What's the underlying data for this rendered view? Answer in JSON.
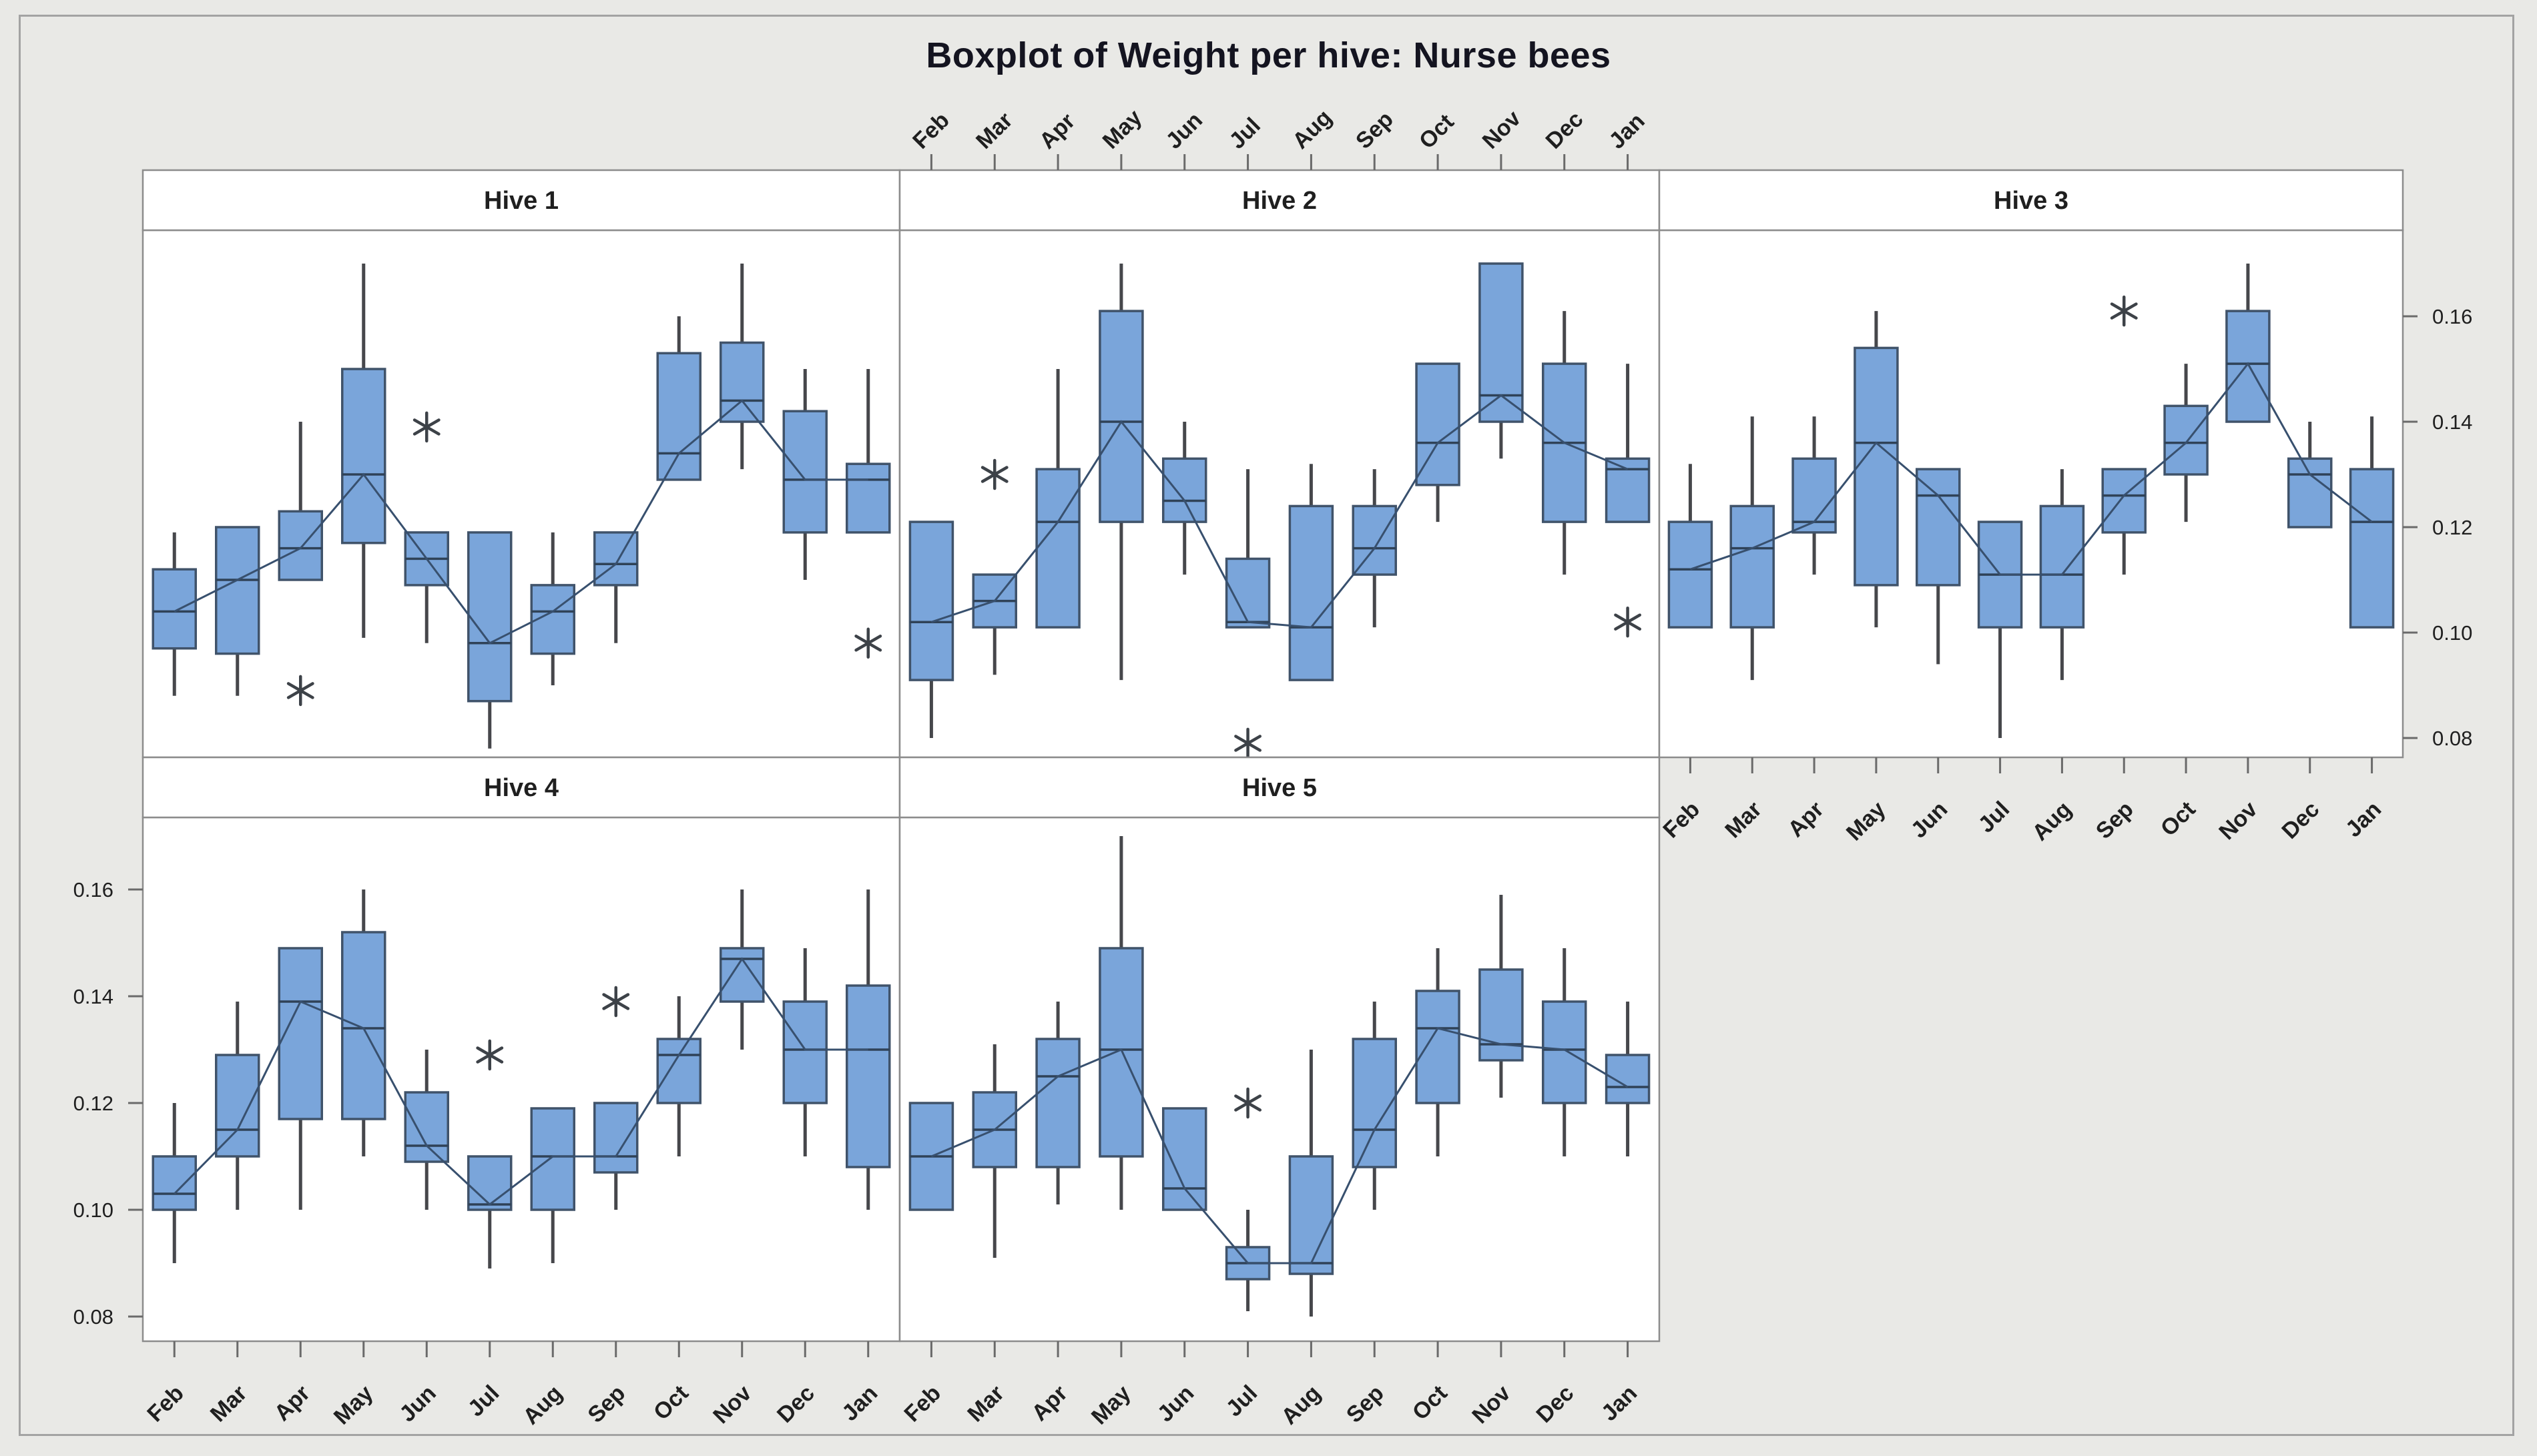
{
  "title": "Boxplot of Weight per hive: Nurse bees",
  "months": [
    "Feb",
    "Mar",
    "Apr",
    "May",
    "Jun",
    "Jul",
    "Aug",
    "Sep",
    "Oct",
    "Nov",
    "Dec",
    "Jan"
  ],
  "y_ticks": [
    "0.16",
    "0.14",
    "0.12",
    "0.10",
    "0.08"
  ],
  "y_tick_values": [
    0.16,
    0.14,
    0.12,
    0.1,
    0.08
  ],
  "colors": {
    "background": "#e9e9e6",
    "panel_bg": "#ffffff",
    "panel_border": "#8c8c8c",
    "box_fill": "#7aa5da",
    "box_stroke": "#40536a",
    "median": "#2f4257",
    "whisker": "#46474b",
    "connect_line": "#38506e",
    "outlier": "#3d4248",
    "axis_text": "#1f1f1f",
    "tick": "#6a6a6a",
    "frame": "#a3a3a3"
  },
  "chart_data": {
    "type": "boxplot",
    "title": "Boxplot of Weight per hive: Nurse bees",
    "categories": [
      "Feb",
      "Mar",
      "Apr",
      "May",
      "Jun",
      "Jul",
      "Aug",
      "Sep",
      "Oct",
      "Nov",
      "Dec",
      "Jan"
    ],
    "ylim": [
      0.075,
      0.178
    ],
    "y_tick_values": [
      0.16,
      0.14,
      0.12,
      0.1,
      0.08
    ],
    "grid": "off",
    "layout_hint": {
      "grid_rows": 2,
      "grid_cols": 3,
      "top_months_over": "Hive 2",
      "bottom_months_under": [
        "Hive 3",
        "Hive 4",
        "Hive 5"
      ],
      "y_labels_right_of": "Hive 3",
      "y_labels_left_of": "Hive 4",
      "median_connect_line": true,
      "outlier_symbol": "asterisk"
    },
    "panels": [
      {
        "label": "Hive 1",
        "boxes": [
          {
            "month": "Feb",
            "whislo": 0.088,
            "q1": 0.097,
            "med": 0.104,
            "q3": 0.112,
            "whishi": 0.119,
            "outliers": []
          },
          {
            "month": "Mar",
            "whislo": 0.088,
            "q1": 0.096,
            "med": 0.11,
            "q3": 0.12,
            "whishi": 0.12,
            "outliers": []
          },
          {
            "month": "Apr",
            "whislo": 0.11,
            "q1": 0.11,
            "med": 0.116,
            "q3": 0.123,
            "whishi": 0.14,
            "outliers": [
              0.089
            ]
          },
          {
            "month": "May",
            "whislo": 0.099,
            "q1": 0.117,
            "med": 0.13,
            "q3": 0.15,
            "whishi": 0.17,
            "outliers": []
          },
          {
            "month": "Jun",
            "whislo": 0.098,
            "q1": 0.109,
            "med": 0.114,
            "q3": 0.119,
            "whishi": 0.119,
            "outliers": [
              0.139
            ]
          },
          {
            "month": "Jul",
            "whislo": 0.078,
            "q1": 0.087,
            "med": 0.098,
            "q3": 0.119,
            "whishi": 0.119,
            "outliers": []
          },
          {
            "month": "Aug",
            "whislo": 0.09,
            "q1": 0.096,
            "med": 0.104,
            "q3": 0.109,
            "whishi": 0.119,
            "outliers": []
          },
          {
            "month": "Sep",
            "whislo": 0.098,
            "q1": 0.109,
            "med": 0.113,
            "q3": 0.119,
            "whishi": 0.119,
            "outliers": []
          },
          {
            "month": "Oct",
            "whislo": 0.129,
            "q1": 0.129,
            "med": 0.134,
            "q3": 0.153,
            "whishi": 0.16,
            "outliers": []
          },
          {
            "month": "Nov",
            "whislo": 0.131,
            "q1": 0.14,
            "med": 0.144,
            "q3": 0.155,
            "whishi": 0.17,
            "outliers": []
          },
          {
            "month": "Dec",
            "whislo": 0.11,
            "q1": 0.119,
            "med": 0.129,
            "q3": 0.142,
            "whishi": 0.15,
            "outliers": []
          },
          {
            "month": "Jan",
            "whislo": 0.119,
            "q1": 0.119,
            "med": 0.129,
            "q3": 0.132,
            "whishi": 0.15,
            "outliers": [
              0.098
            ]
          }
        ]
      },
      {
        "label": "Hive 2",
        "boxes": [
          {
            "month": "Feb",
            "whislo": 0.08,
            "q1": 0.091,
            "med": 0.102,
            "q3": 0.121,
            "whishi": 0.121,
            "outliers": []
          },
          {
            "month": "Mar",
            "whislo": 0.092,
            "q1": 0.101,
            "med": 0.106,
            "q3": 0.111,
            "whishi": 0.111,
            "outliers": [
              0.13
            ]
          },
          {
            "month": "Apr",
            "whislo": 0.101,
            "q1": 0.101,
            "med": 0.121,
            "q3": 0.131,
            "whishi": 0.15,
            "outliers": []
          },
          {
            "month": "May",
            "whislo": 0.091,
            "q1": 0.121,
            "med": 0.14,
            "q3": 0.161,
            "whishi": 0.17,
            "outliers": []
          },
          {
            "month": "Jun",
            "whislo": 0.111,
            "q1": 0.121,
            "med": 0.125,
            "q3": 0.133,
            "whishi": 0.14,
            "outliers": []
          },
          {
            "month": "Jul",
            "whislo": 0.101,
            "q1": 0.101,
            "med": 0.102,
            "q3": 0.114,
            "whishi": 0.131,
            "outliers": [
              0.079
            ]
          },
          {
            "month": "Aug",
            "whislo": 0.091,
            "q1": 0.091,
            "med": 0.101,
            "q3": 0.124,
            "whishi": 0.132,
            "outliers": []
          },
          {
            "month": "Sep",
            "whislo": 0.101,
            "q1": 0.111,
            "med": 0.116,
            "q3": 0.124,
            "whishi": 0.131,
            "outliers": []
          },
          {
            "month": "Oct",
            "whislo": 0.121,
            "q1": 0.128,
            "med": 0.136,
            "q3": 0.151,
            "whishi": 0.151,
            "outliers": []
          },
          {
            "month": "Nov",
            "whislo": 0.133,
            "q1": 0.14,
            "med": 0.145,
            "q3": 0.17,
            "whishi": 0.17,
            "outliers": []
          },
          {
            "month": "Dec",
            "whislo": 0.111,
            "q1": 0.121,
            "med": 0.136,
            "q3": 0.151,
            "whishi": 0.161,
            "outliers": []
          },
          {
            "month": "Jan",
            "whislo": 0.121,
            "q1": 0.121,
            "med": 0.131,
            "q3": 0.133,
            "whishi": 0.151,
            "outliers": [
              0.102
            ]
          }
        ]
      },
      {
        "label": "Hive 3",
        "boxes": [
          {
            "month": "Feb",
            "whislo": 0.101,
            "q1": 0.101,
            "med": 0.112,
            "q3": 0.121,
            "whishi": 0.132,
            "outliers": []
          },
          {
            "month": "Mar",
            "whislo": 0.091,
            "q1": 0.101,
            "med": 0.116,
            "q3": 0.124,
            "whishi": 0.141,
            "outliers": []
          },
          {
            "month": "Apr",
            "whislo": 0.111,
            "q1": 0.119,
            "med": 0.121,
            "q3": 0.133,
            "whishi": 0.141,
            "outliers": []
          },
          {
            "month": "May",
            "whislo": 0.101,
            "q1": 0.109,
            "med": 0.136,
            "q3": 0.154,
            "whishi": 0.161,
            "outliers": []
          },
          {
            "month": "Jun",
            "whislo": 0.094,
            "q1": 0.109,
            "med": 0.126,
            "q3": 0.131,
            "whishi": 0.131,
            "outliers": []
          },
          {
            "month": "Jul",
            "whislo": 0.08,
            "q1": 0.101,
            "med": 0.111,
            "q3": 0.121,
            "whishi": 0.121,
            "outliers": []
          },
          {
            "month": "Aug",
            "whislo": 0.091,
            "q1": 0.101,
            "med": 0.111,
            "q3": 0.124,
            "whishi": 0.131,
            "outliers": []
          },
          {
            "month": "Sep",
            "whislo": 0.111,
            "q1": 0.119,
            "med": 0.126,
            "q3": 0.131,
            "whishi": 0.131,
            "outliers": [
              0.161
            ]
          },
          {
            "month": "Oct",
            "whislo": 0.121,
            "q1": 0.13,
            "med": 0.136,
            "q3": 0.143,
            "whishi": 0.151,
            "outliers": []
          },
          {
            "month": "Nov",
            "whislo": 0.14,
            "q1": 0.14,
            "med": 0.151,
            "q3": 0.161,
            "whishi": 0.17,
            "outliers": []
          },
          {
            "month": "Dec",
            "whislo": 0.12,
            "q1": 0.12,
            "med": 0.13,
            "q3": 0.133,
            "whishi": 0.14,
            "outliers": []
          },
          {
            "month": "Jan",
            "whislo": 0.101,
            "q1": 0.101,
            "med": 0.121,
            "q3": 0.131,
            "whishi": 0.141,
            "outliers": []
          }
        ]
      },
      {
        "label": "Hive 4",
        "boxes": [
          {
            "month": "Feb",
            "whislo": 0.09,
            "q1": 0.1,
            "med": 0.103,
            "q3": 0.11,
            "whishi": 0.12,
            "outliers": []
          },
          {
            "month": "Mar",
            "whislo": 0.1,
            "q1": 0.11,
            "med": 0.115,
            "q3": 0.129,
            "whishi": 0.139,
            "outliers": []
          },
          {
            "month": "Apr",
            "whislo": 0.1,
            "q1": 0.117,
            "med": 0.139,
            "q3": 0.149,
            "whishi": 0.149,
            "outliers": []
          },
          {
            "month": "May",
            "whislo": 0.11,
            "q1": 0.117,
            "med": 0.134,
            "q3": 0.152,
            "whishi": 0.16,
            "outliers": []
          },
          {
            "month": "Jun",
            "whislo": 0.1,
            "q1": 0.109,
            "med": 0.112,
            "q3": 0.122,
            "whishi": 0.13,
            "outliers": []
          },
          {
            "month": "Jul",
            "whislo": 0.089,
            "q1": 0.1,
            "med": 0.101,
            "q3": 0.11,
            "whishi": 0.11,
            "outliers": [
              0.129
            ]
          },
          {
            "month": "Aug",
            "whislo": 0.09,
            "q1": 0.1,
            "med": 0.11,
            "q3": 0.119,
            "whishi": 0.119,
            "outliers": []
          },
          {
            "month": "Sep",
            "whislo": 0.1,
            "q1": 0.107,
            "med": 0.11,
            "q3": 0.12,
            "whishi": 0.12,
            "outliers": [
              0.139
            ]
          },
          {
            "month": "Oct",
            "whislo": 0.11,
            "q1": 0.12,
            "med": 0.129,
            "q3": 0.132,
            "whishi": 0.14,
            "outliers": []
          },
          {
            "month": "Nov",
            "whislo": 0.13,
            "q1": 0.139,
            "med": 0.147,
            "q3": 0.149,
            "whishi": 0.16,
            "outliers": []
          },
          {
            "month": "Dec",
            "whislo": 0.11,
            "q1": 0.12,
            "med": 0.13,
            "q3": 0.139,
            "whishi": 0.149,
            "outliers": []
          },
          {
            "month": "Jan",
            "whislo": 0.1,
            "q1": 0.108,
            "med": 0.13,
            "q3": 0.142,
            "whishi": 0.16,
            "outliers": []
          }
        ]
      },
      {
        "label": "Hive 5",
        "boxes": [
          {
            "month": "Feb",
            "whislo": 0.1,
            "q1": 0.1,
            "med": 0.11,
            "q3": 0.12,
            "whishi": 0.12,
            "outliers": []
          },
          {
            "month": "Mar",
            "whislo": 0.091,
            "q1": 0.108,
            "med": 0.115,
            "q3": 0.122,
            "whishi": 0.131,
            "outliers": []
          },
          {
            "month": "Apr",
            "whislo": 0.101,
            "q1": 0.108,
            "med": 0.125,
            "q3": 0.132,
            "whishi": 0.139,
            "outliers": []
          },
          {
            "month": "May",
            "whislo": 0.1,
            "q1": 0.11,
            "med": 0.13,
            "q3": 0.149,
            "whishi": 0.17,
            "outliers": []
          },
          {
            "month": "Jun",
            "whislo": 0.1,
            "q1": 0.1,
            "med": 0.104,
            "q3": 0.119,
            "whishi": 0.119,
            "outliers": []
          },
          {
            "month": "Jul",
            "whislo": 0.081,
            "q1": 0.087,
            "med": 0.09,
            "q3": 0.093,
            "whishi": 0.1,
            "outliers": [
              0.12
            ]
          },
          {
            "month": "Aug",
            "whislo": 0.08,
            "q1": 0.088,
            "med": 0.09,
            "q3": 0.11,
            "whishi": 0.13,
            "outliers": []
          },
          {
            "month": "Sep",
            "whislo": 0.1,
            "q1": 0.108,
            "med": 0.115,
            "q3": 0.132,
            "whishi": 0.139,
            "outliers": []
          },
          {
            "month": "Oct",
            "whislo": 0.11,
            "q1": 0.12,
            "med": 0.134,
            "q3": 0.141,
            "whishi": 0.149,
            "outliers": []
          },
          {
            "month": "Nov",
            "whislo": 0.121,
            "q1": 0.128,
            "med": 0.131,
            "q3": 0.145,
            "whishi": 0.159,
            "outliers": []
          },
          {
            "month": "Dec",
            "whislo": 0.11,
            "q1": 0.12,
            "med": 0.13,
            "q3": 0.139,
            "whishi": 0.149,
            "outliers": []
          },
          {
            "month": "Jan",
            "whislo": 0.11,
            "q1": 0.12,
            "med": 0.123,
            "q3": 0.129,
            "whishi": 0.139,
            "outliers": []
          }
        ]
      }
    ]
  }
}
